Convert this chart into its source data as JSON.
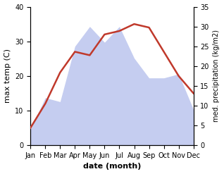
{
  "months": [
    "Jan",
    "Feb",
    "Mar",
    "Apr",
    "May",
    "Jun",
    "Jul",
    "Aug",
    "Sep",
    "Oct",
    "Nov",
    "Dec"
  ],
  "max_temp": [
    5,
    12,
    21,
    27,
    26,
    32,
    33,
    35,
    34,
    27,
    20,
    15
  ],
  "precipitation": [
    4,
    12,
    11,
    25,
    30,
    26,
    30,
    22,
    17,
    17,
    18,
    9
  ],
  "temp_ylim": [
    0,
    40
  ],
  "precip_ylim": [
    0,
    35
  ],
  "temp_yticks": [
    0,
    10,
    20,
    30,
    40
  ],
  "precip_yticks": [
    0,
    5,
    10,
    15,
    20,
    25,
    30,
    35
  ],
  "temp_color": "#c0392b",
  "precip_fill_color": "#c5cdf0",
  "xlabel": "date (month)",
  "ylabel_left": "max temp (C)",
  "ylabel_right": "med. precipitation (kg/m2)",
  "bg_color": "#ffffff",
  "label_fontsize": 8,
  "tick_fontsize": 7
}
